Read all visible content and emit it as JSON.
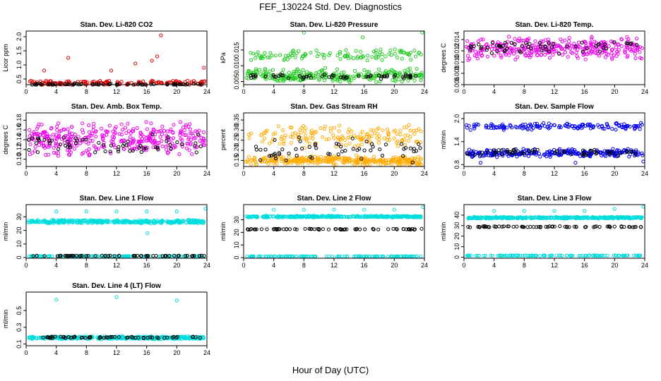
{
  "figure": {
    "title": "FEF_130224  Std. Dev. Diagnostics",
    "x_axis_title": "Hour of Day (UTC)"
  },
  "chart_data": [
    {
      "type": "scatter",
      "title": "Stan. Dev. Li-820 CO2",
      "ylabel": "Licor ppm",
      "xlim": [
        0,
        24
      ],
      "ylim": [
        0.3,
        2.2
      ],
      "x_ticks": [
        0,
        4,
        8,
        12,
        16,
        20,
        24
      ],
      "y_ticks": [
        0.5,
        1.0,
        1.5,
        2.0
      ],
      "y_tick_labels": [
        "0.5",
        "1.0",
        "1.5",
        "2.0"
      ],
      "series": [
        {
          "color": "#dd0000",
          "base": 0.36,
          "spread": 0.1,
          "count": 150,
          "outliers": [
            [
              2.4,
              0.8
            ],
            [
              5.6,
              1.25
            ],
            [
              11.3,
              0.8
            ],
            [
              14.5,
              1.05
            ],
            [
              16.7,
              1.15
            ],
            [
              17.4,
              1.3
            ],
            [
              17.9,
              2.05
            ],
            [
              23.6,
              0.9
            ]
          ]
        },
        {
          "color": "#000000",
          "base": 0.31,
          "spread": 0.03,
          "count": 60,
          "outliers": []
        }
      ]
    },
    {
      "type": "scatter",
      "title": "Stan. Dev. Li-820 Pressure",
      "ylabel": "kPa",
      "xlim": [
        0,
        24
      ],
      "ylim": [
        0.004,
        0.021
      ],
      "x_ticks": [
        0,
        4,
        8,
        12,
        16,
        20,
        24
      ],
      "y_ticks": [
        0.005,
        0.01,
        0.015
      ],
      "y_tick_labels": [
        "0.005",
        "0.010",
        "0.015"
      ],
      "series": [
        {
          "color": "#22cc22",
          "base": 0.007,
          "spread": 0.0025,
          "count": 260,
          "outliers": []
        },
        {
          "color": "#22cc22",
          "base": 0.0135,
          "spread": 0.002,
          "count": 110,
          "outliers": [
            [
              8,
              0.0205
            ],
            [
              15.8,
              0.019
            ],
            [
              23.7,
              0.0205
            ]
          ]
        },
        {
          "color": "#000000",
          "base": 0.0066,
          "spread": 0.0008,
          "count": 60,
          "outliers": []
        }
      ]
    },
    {
      "type": "scatter",
      "title": "Stan. Dev. Li-820 Temp.",
      "ylabel": "degrees C",
      "xlim": [
        0,
        24
      ],
      "ylim": [
        0.006,
        0.0155
      ],
      "x_ticks": [
        0,
        4,
        8,
        12,
        16,
        20,
        24
      ],
      "y_ticks": [
        0.006,
        0.008,
        0.01,
        0.012,
        0.014
      ],
      "y_tick_labels": [
        "0.006",
        "0.008",
        "0.010",
        "0.012",
        "0.014"
      ],
      "series": [
        {
          "color": "#ee00ee",
          "base": 0.0124,
          "spread": 0.0022,
          "count": 330,
          "outliers": []
        },
        {
          "color": "#000000",
          "base": 0.0127,
          "spread": 0.0013,
          "count": 60,
          "outliers": []
        }
      ]
    },
    {
      "type": "scatter",
      "title": "Stan. Dev. Amb. Box Temp.",
      "ylabel": "degrees C",
      "xlim": [
        0,
        24
      ],
      "ylim": [
        0.085,
        0.195
      ],
      "x_ticks": [
        0,
        4,
        8,
        12,
        16,
        20,
        24
      ],
      "y_ticks": [
        0.1,
        0.12,
        0.14,
        0.16,
        0.18
      ],
      "y_tick_labels": [
        "0.10",
        "0.12",
        "0.14",
        "0.16",
        "0.18"
      ],
      "series": [
        {
          "color": "#ee00ee",
          "base": 0.14,
          "spread": 0.038,
          "count": 360,
          "outliers": []
        },
        {
          "color": "#000000",
          "base": 0.13,
          "spread": 0.025,
          "count": 60,
          "outliers": []
        }
      ]
    },
    {
      "type": "scatter",
      "title": "Stan. Dev. Gas Stream RH",
      "ylabel": "percent",
      "xlim": [
        0,
        24
      ],
      "ylim": [
        0.12,
        0.385
      ],
      "x_ticks": [
        0,
        4,
        8,
        12,
        16,
        20,
        24
      ],
      "y_ticks": [
        0.15,
        0.2,
        0.25,
        0.3,
        0.35
      ],
      "y_tick_labels": [
        "0.15",
        "0.20",
        "0.25",
        "0.30",
        "0.35"
      ],
      "series": [
        {
          "color": "#ffaa00",
          "base": 0.15,
          "spread": 0.025,
          "count": 320,
          "outliers": []
        },
        {
          "color": "#ffaa00",
          "base": 0.27,
          "spread": 0.06,
          "count": 160,
          "outliers": []
        },
        {
          "color": "#000000",
          "base": 0.2,
          "spread": 0.07,
          "count": 60,
          "outliers": []
        }
      ]
    },
    {
      "type": "scatter",
      "title": "Stan. Dev. Sample Flow",
      "ylabel": "ml/min",
      "xlim": [
        0,
        24
      ],
      "ylim": [
        0.75,
        2.15
      ],
      "x_ticks": [
        0,
        4,
        8,
        12,
        16,
        20,
        24
      ],
      "y_ticks": [
        0.8,
        1.4,
        2.0
      ],
      "y_tick_labels": [
        "0.8",
        "1.4",
        "2.0"
      ],
      "series": [
        {
          "color": "#0000ee",
          "base": 1.8,
          "spread": 0.1,
          "count": 150,
          "outliers": []
        },
        {
          "color": "#0000ee",
          "base": 1.1,
          "spread": 0.12,
          "count": 260,
          "outliers": [
            [
              2.2,
              0.85
            ],
            [
              14.8,
              0.85
            ],
            [
              23.8,
              0.88
            ]
          ]
        },
        {
          "color": "#000000",
          "base": 1.12,
          "spread": 0.1,
          "count": 60,
          "outliers": []
        }
      ]
    },
    {
      "type": "scatter",
      "title": "Stan. Dev. Line 1 Flow",
      "ylabel": "ml/min",
      "xlim": [
        0,
        24
      ],
      "ylim": [
        -0.5,
        39
      ],
      "x_ticks": [
        0,
        4,
        8,
        12,
        16,
        20,
        24
      ],
      "y_ticks": [
        0,
        10,
        20,
        30
      ],
      "y_tick_labels": [
        "0",
        "10",
        "20",
        "30"
      ],
      "series": [
        {
          "color": "#00dddd",
          "base": 26.5,
          "spread": 1.4,
          "count": 340,
          "outliers": [
            [
              4,
              34
            ],
            [
              8,
              34
            ],
            [
              12,
              34
            ],
            [
              16,
              34
            ],
            [
              16.1,
              18
            ],
            [
              20,
              34
            ],
            [
              23.8,
              36
            ]
          ]
        },
        {
          "color": "#00dddd",
          "base": 1.0,
          "spread": 0.2,
          "count": 120,
          "outliers": []
        },
        {
          "color": "#000000",
          "base": 1.3,
          "spread": 0.2,
          "count": 60,
          "outliers": []
        }
      ]
    },
    {
      "type": "scatter",
      "title": "Stan. Dev. Line 2 Flow",
      "ylabel": "ml/min",
      "xlim": [
        0,
        24
      ],
      "ylim": [
        -0.5,
        42
      ],
      "x_ticks": [
        0,
        4,
        8,
        12,
        16,
        20,
        24
      ],
      "y_ticks": [
        0,
        10,
        20,
        30
      ],
      "y_tick_labels": [
        "0",
        "10",
        "20",
        "30"
      ],
      "series": [
        {
          "color": "#00dddd",
          "base": 32.5,
          "spread": 0.8,
          "count": 340,
          "outliers": [
            [
              4,
              38
            ],
            [
              8,
              38
            ],
            [
              12,
              38
            ],
            [
              16,
              38
            ],
            [
              20,
              38
            ],
            [
              23.8,
              40
            ]
          ]
        },
        {
          "color": "#00dddd",
          "base": 1.0,
          "spread": 0.2,
          "count": 120,
          "outliers": []
        },
        {
          "color": "#000000",
          "base": 22.5,
          "spread": 0.5,
          "count": 70,
          "outliers": []
        }
      ]
    },
    {
      "type": "scatter",
      "title": "Stan. Dev. Line 3 Flow",
      "ylabel": "ml/min",
      "xlim": [
        0,
        24
      ],
      "ylim": [
        -1,
        50
      ],
      "x_ticks": [
        0,
        4,
        8,
        12,
        16,
        20,
        24
      ],
      "y_ticks": [
        0,
        10,
        20,
        30,
        40
      ],
      "y_tick_labels": [
        "0",
        "10",
        "20",
        "30",
        "40"
      ],
      "series": [
        {
          "color": "#00dddd",
          "base": 37.5,
          "spread": 1.0,
          "count": 340,
          "outliers": [
            [
              4,
              44
            ],
            [
              8,
              44
            ],
            [
              12,
              44
            ],
            [
              16,
              44
            ],
            [
              20,
              46
            ],
            [
              23.8,
              48
            ]
          ]
        },
        {
          "color": "#00dddd",
          "base": 1.5,
          "spread": 0.3,
          "count": 120,
          "outliers": []
        },
        {
          "color": "#000000",
          "base": 29.0,
          "spread": 0.6,
          "count": 70,
          "outliers": []
        }
      ]
    },
    {
      "type": "scatter",
      "title": "Stan. Dev. Line 4 (LT) Flow",
      "ylabel": "ml/min",
      "xlim": [
        0,
        24
      ],
      "ylim": [
        0.08,
        0.72
      ],
      "x_ticks": [
        0,
        4,
        8,
        12,
        16,
        20,
        24
      ],
      "y_ticks": [
        0.1,
        0.3,
        0.5
      ],
      "y_tick_labels": [
        "0.1",
        "0.3",
        "0.5"
      ],
      "series": [
        {
          "color": "#00dddd",
          "base": 0.175,
          "spread": 0.02,
          "count": 320,
          "outliers": [
            [
              4,
              0.63
            ],
            [
              12,
              0.66
            ],
            [
              20,
              0.62
            ]
          ]
        },
        {
          "color": "#000000",
          "base": 0.18,
          "spread": 0.012,
          "count": 60,
          "outliers": []
        }
      ]
    }
  ]
}
